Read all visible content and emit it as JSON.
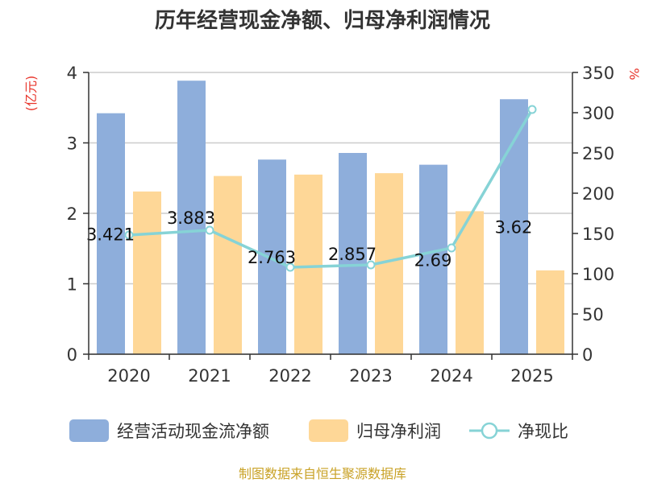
{
  "chart_data": {
    "type": "bar",
    "title": "历年经营现金净额、归母净利润情况",
    "categories": [
      "2020",
      "2021",
      "2022",
      "2023",
      "2024",
      "2025"
    ],
    "series": [
      {
        "name": "经营活动现金流净额",
        "kind": "bar",
        "axis": "left",
        "color": "#8eaedb",
        "values": [
          3.421,
          3.883,
          2.763,
          2.857,
          2.69,
          3.62
        ]
      },
      {
        "name": "归母净利润",
        "kind": "bar",
        "axis": "left",
        "color": "#fed797",
        "values": [
          2.31,
          2.53,
          2.55,
          2.57,
          2.03,
          1.19
        ]
      },
      {
        "name": "净现比",
        "kind": "line",
        "axis": "right",
        "color": "#86d3d6",
        "values": [
          148,
          154,
          108,
          111,
          132,
          304
        ]
      }
    ],
    "data_labels": [
      "3.421",
      "3.883",
      "2.763",
      "2.857",
      "2.69",
      "3.62"
    ],
    "y_left": {
      "unit": "(亿元)",
      "ylim": [
        0,
        4
      ],
      "ticks": [
        "0",
        "1",
        "2",
        "3",
        "4"
      ]
    },
    "y_right": {
      "unit": "%",
      "ylim": [
        0,
        350
      ],
      "ticks": [
        "0",
        "50",
        "100",
        "150",
        "200",
        "250",
        "300",
        "350"
      ]
    },
    "legend_position": "bottom",
    "grid": true
  },
  "source_note": "制图数据来自恒生聚源数据库"
}
